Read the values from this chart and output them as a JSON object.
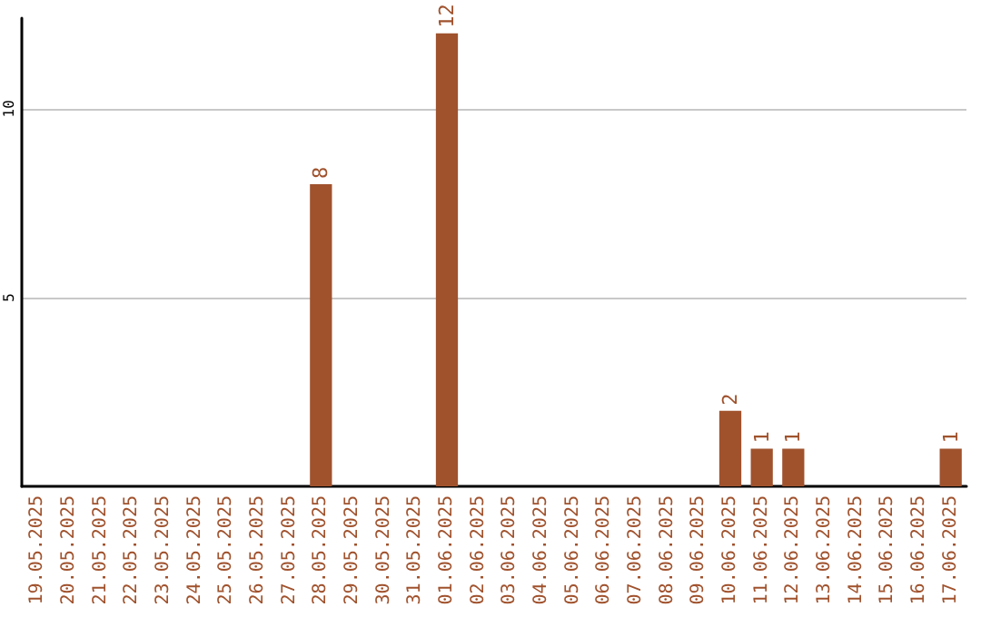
{
  "chart_data": {
    "type": "bar",
    "categories": [
      "19.05.2025",
      "20.05.2025",
      "21.05.2025",
      "22.05.2025",
      "23.05.2025",
      "24.05.2025",
      "25.05.2025",
      "26.05.2025",
      "27.05.2025",
      "28.05.2025",
      "29.05.2025",
      "30.05.2025",
      "31.05.2025",
      "01.06.2025",
      "02.06.2025",
      "03.06.2025",
      "04.06.2025",
      "05.06.2025",
      "06.06.2025",
      "07.06.2025",
      "08.06.2025",
      "09.06.2025",
      "10.06.2025",
      "11.06.2025",
      "12.06.2025",
      "13.06.2025",
      "14.06.2025",
      "15.06.2025",
      "16.06.2025",
      "17.06.2025"
    ],
    "values": [
      0,
      0,
      0,
      0,
      0,
      0,
      0,
      0,
      0,
      8,
      0,
      0,
      0,
      12,
      0,
      0,
      0,
      0,
      0,
      0,
      0,
      0,
      2,
      1,
      1,
      0,
      0,
      0,
      0,
      1
    ],
    "value_labels": [
      null,
      null,
      null,
      null,
      null,
      null,
      null,
      null,
      null,
      "8",
      null,
      null,
      null,
      "12",
      null,
      null,
      null,
      null,
      null,
      null,
      null,
      null,
      "2",
      "1",
      "1",
      null,
      null,
      null,
      null,
      "1"
    ],
    "color": "#a0522d",
    "ylim": [
      0,
      12.4
    ],
    "yticks": [
      5,
      10
    ],
    "grid": "y"
  }
}
